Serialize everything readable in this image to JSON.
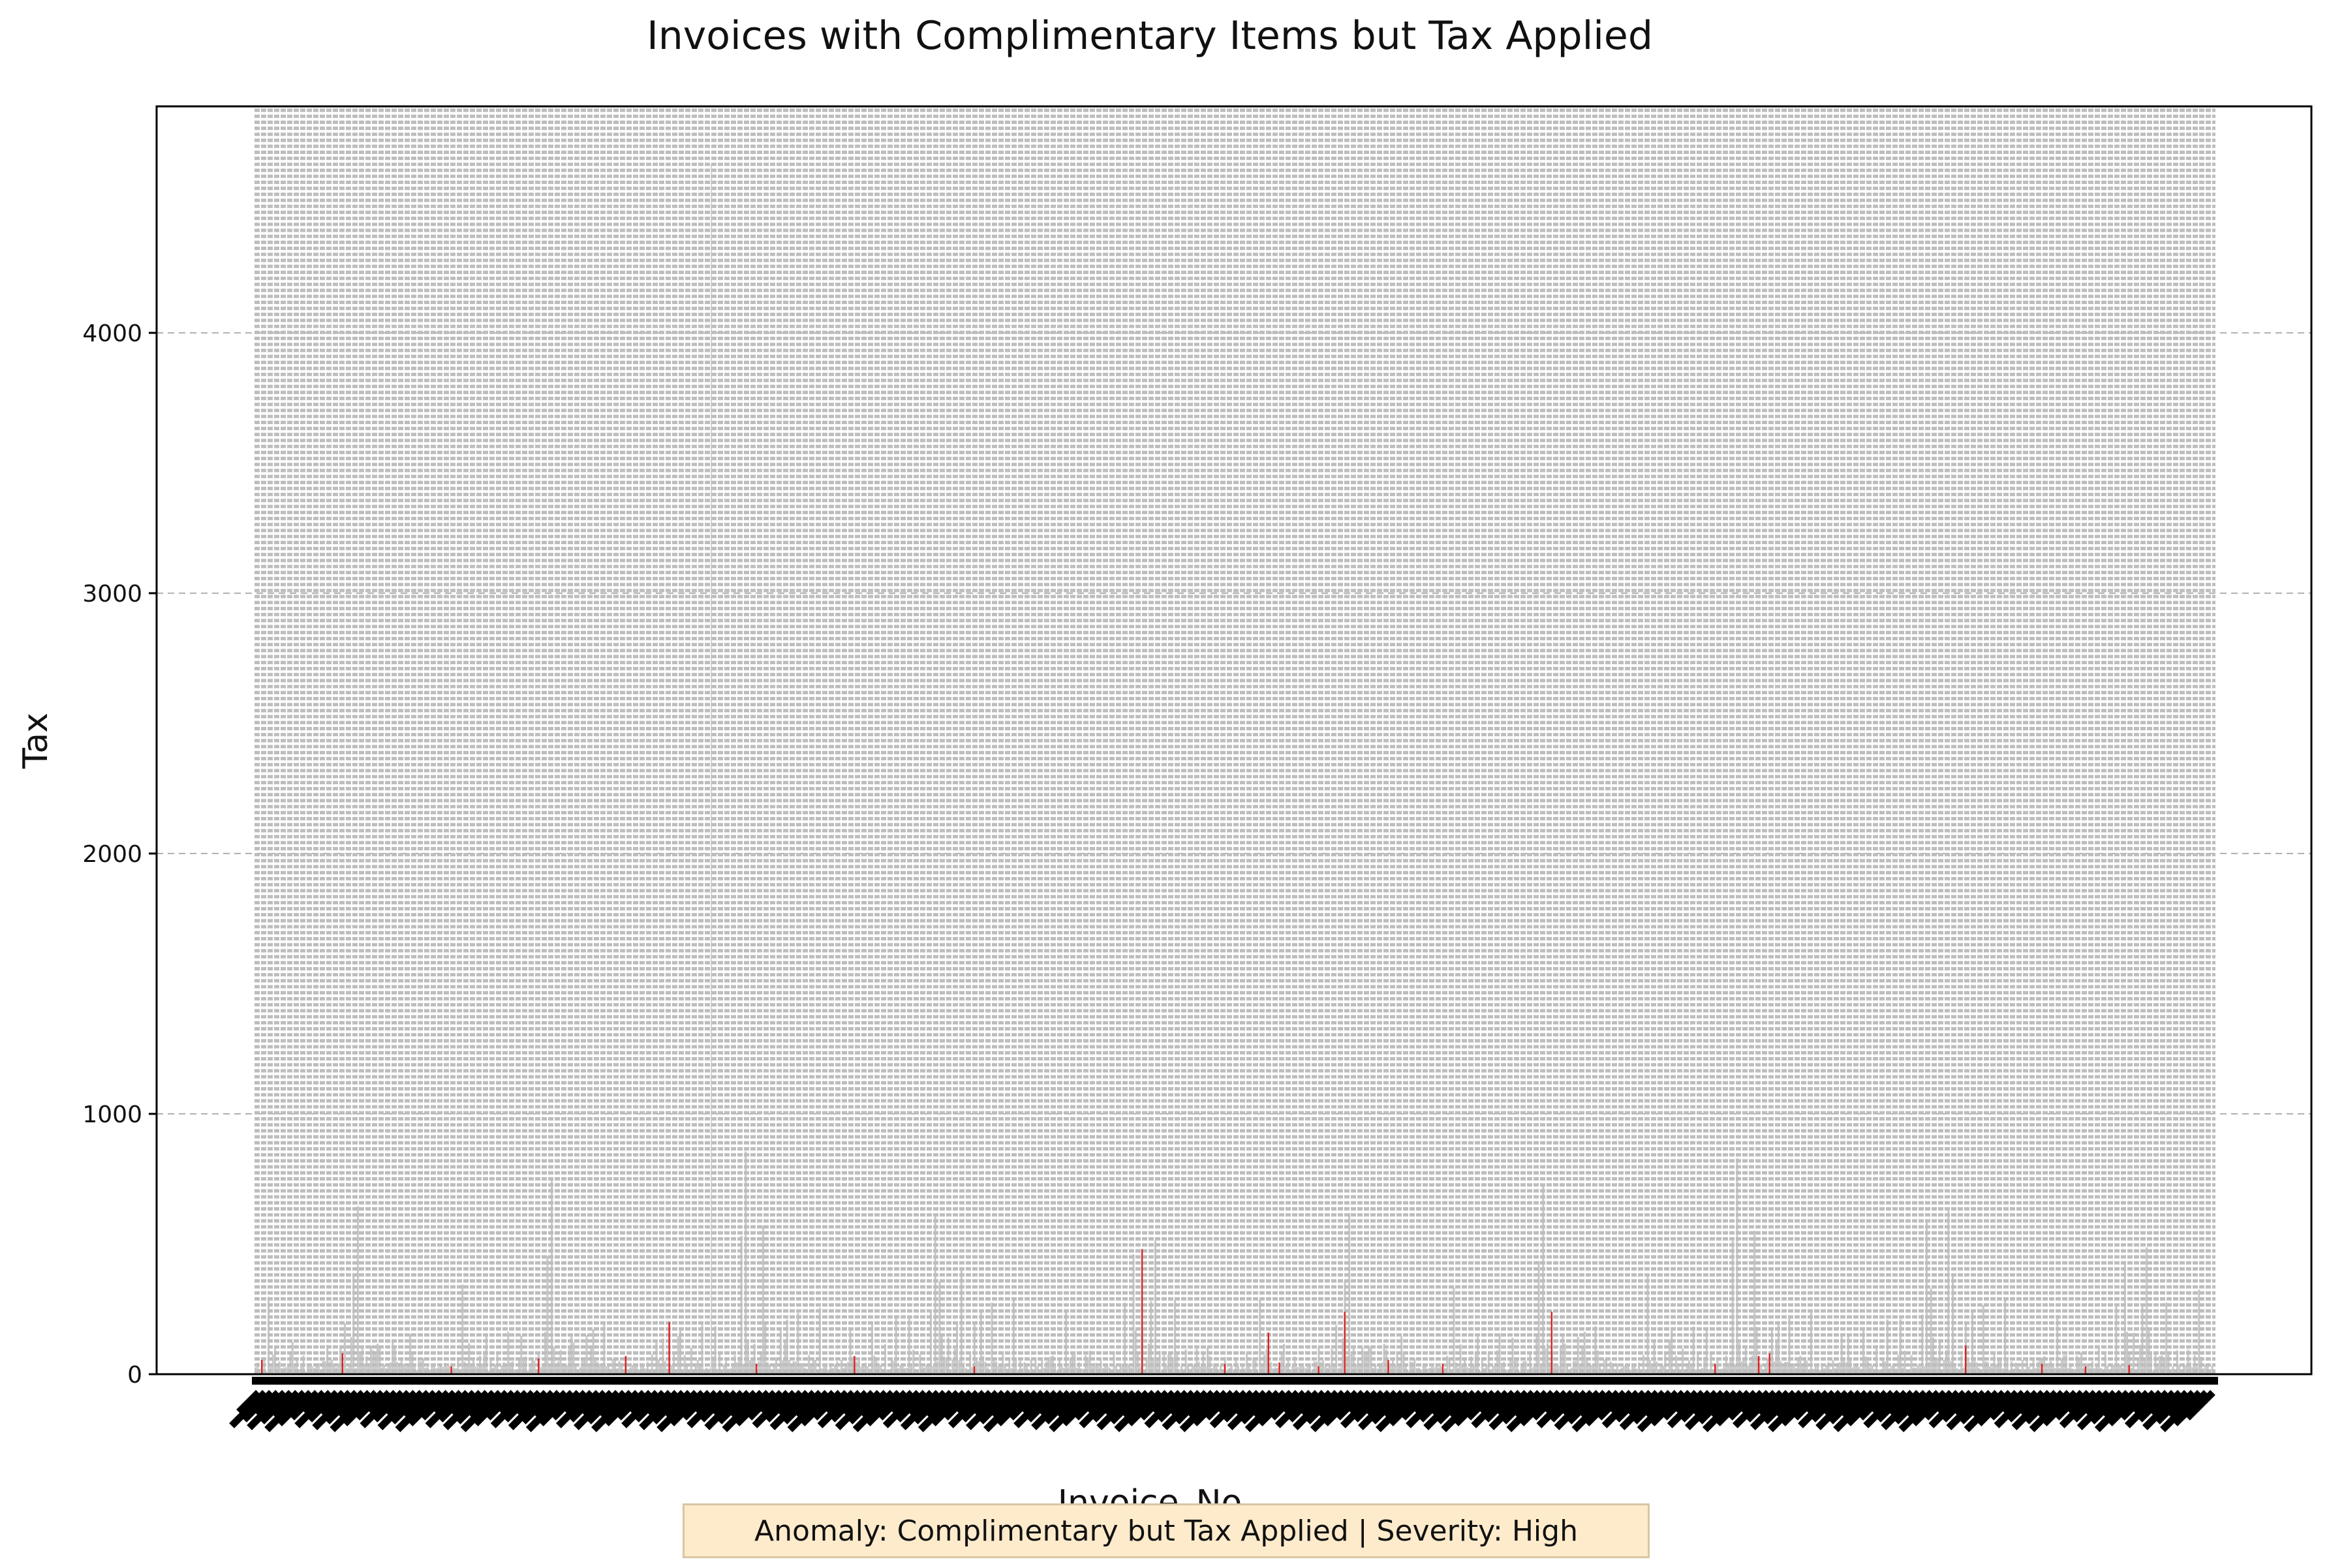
{
  "chart_data": {
    "type": "bar",
    "title": "Invoices with Complimentary Items but Tax Applied",
    "xlabel": "Invoice_No",
    "ylabel": "Tax",
    "ylim": [
      0,
      4870
    ],
    "yticks": [
      0,
      1000,
      2000,
      3000,
      4000
    ],
    "grid": "y-dashed",
    "bar_count": 900,
    "base_color": "#c8c8c8",
    "highlight_color": "#e02020",
    "tick_label_color": "#000000",
    "series": [
      {
        "values": [
          75,
          40,
          25,
          60,
          30,
          45,
          20,
          55,
          35,
          50,
          180,
          90,
          300,
          60,
          40,
          110,
          70,
          30,
          50,
          85,
          40,
          65,
          25,
          270,
          60,
          200,
          45,
          30,
          80,
          35,
          55,
          150,
          90,
          40,
          60,
          25,
          70,
          95,
          580,
          120,
          60,
          40,
          350,
          85,
          30,
          65,
          280,
          90,
          45,
          70,
          200,
          35,
          790,
          120,
          60,
          40,
          75,
          30,
          90,
          160,
          45,
          60,
          35,
          140,
          70,
          50,
          110,
          35,
          80,
          65
        ]
      }
    ],
    "highlight_values": [
      55,
      80,
      30,
      60,
      70,
      200,
      40,
      70,
      30,
      480,
      40,
      160,
      45,
      30,
      240,
      55,
      40,
      240,
      40,
      70,
      80,
      110,
      40,
      30,
      35
    ],
    "annotation": "Anomaly: Complimentary but Tax Applied | Severity: High"
  }
}
